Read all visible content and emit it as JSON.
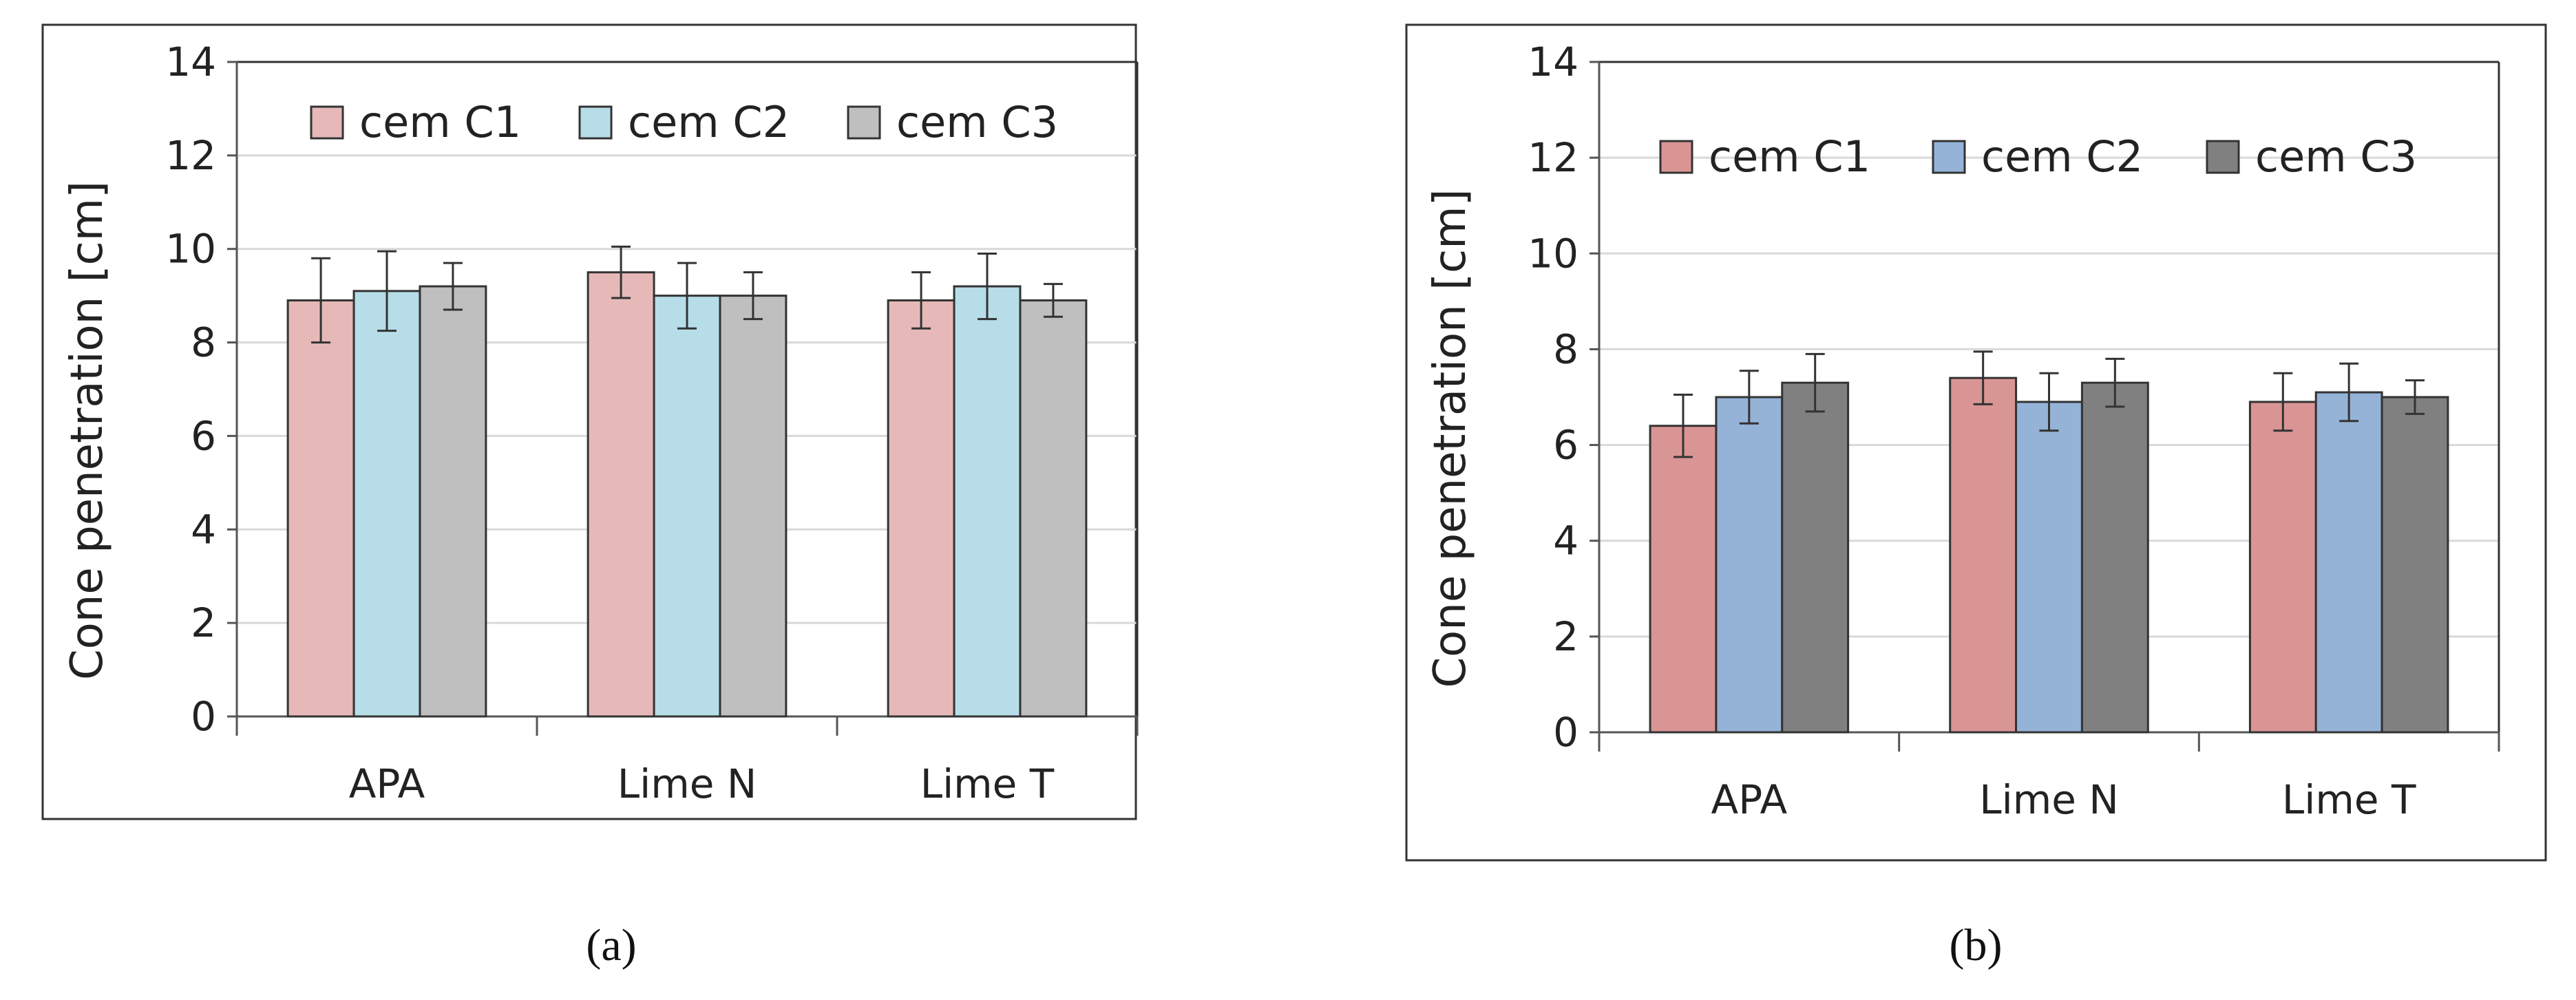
{
  "chart_data": [
    {
      "type": "bar",
      "caption": "(a)",
      "categories": [
        "APA",
        "Lime N",
        "Lime T"
      ],
      "ylabel": "Cone penetration [cm]",
      "ylim": [
        0,
        14
      ],
      "yticks": [
        0,
        2,
        4,
        6,
        8,
        10,
        12,
        14
      ],
      "grid": true,
      "legend_position": "top",
      "series": [
        {
          "name": "cem C1",
          "color": "#e6b9b8",
          "values": [
            8.9,
            9.5,
            8.9
          ],
          "errors": [
            0.9,
            0.55,
            0.6
          ]
        },
        {
          "name": "cem C2",
          "color": "#b7dee8",
          "values": [
            9.1,
            9.0,
            9.2
          ],
          "errors": [
            0.85,
            0.7,
            0.7
          ]
        },
        {
          "name": "cem C3",
          "color": "#bfbfbf",
          "values": [
            9.2,
            9.0,
            8.9
          ],
          "errors": [
            0.5,
            0.5,
            0.35
          ]
        }
      ]
    },
    {
      "type": "bar",
      "caption": "(b)",
      "categories": [
        "APA",
        "Lime N",
        "Lime T"
      ],
      "ylabel": "Cone penetration [cm]",
      "ylim": [
        0,
        14
      ],
      "yticks": [
        0,
        2,
        4,
        6,
        8,
        10,
        12,
        14
      ],
      "grid": true,
      "legend_position": "top",
      "series": [
        {
          "name": "cem C1",
          "color": "#d99594",
          "values": [
            6.4,
            7.4,
            6.9
          ],
          "errors": [
            0.65,
            0.55,
            0.6
          ]
        },
        {
          "name": "cem C2",
          "color": "#95b3d7",
          "values": [
            7.0,
            6.9,
            7.1
          ],
          "errors": [
            0.55,
            0.6,
            0.6
          ]
        },
        {
          "name": "cem C3",
          "color": "#808080",
          "values": [
            7.3,
            7.3,
            7.0
          ],
          "errors": [
            0.6,
            0.5,
            0.35
          ]
        }
      ]
    }
  ]
}
